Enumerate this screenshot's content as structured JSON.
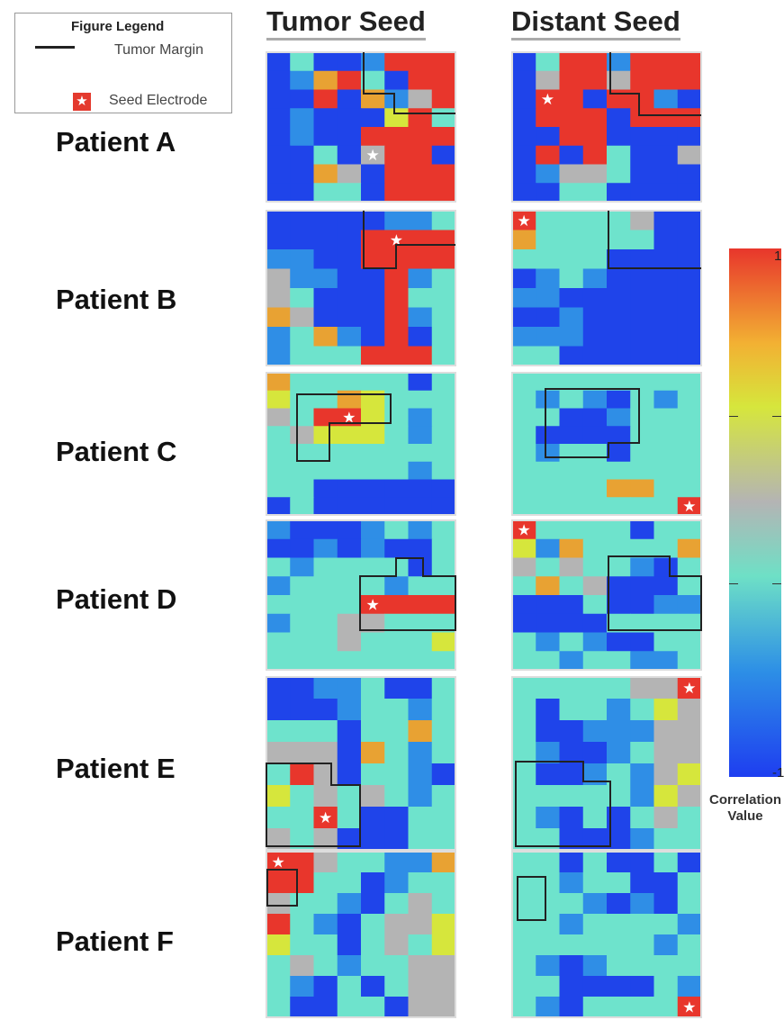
{
  "legend": {
    "title": "Figure Legend",
    "tumor_margin": "Tumor Margin",
    "seed_electrode": "Seed Electrode",
    "star": "★"
  },
  "columns": {
    "tumor": "Tumor Seed",
    "distant": "Distant Seed"
  },
  "patients": [
    "Patient A",
    "Patient B",
    "Patient C",
    "Patient D",
    "Patient E",
    "Patient F"
  ],
  "colorbar": {
    "max_label": "1",
    "min_label": "-1",
    "title_line1": "Correlation",
    "title_line2": "Value",
    "colors": [
      "#e8362c",
      "#f2b133",
      "#d6e63c",
      "#b4b4b4",
      "#6ee0c6",
      "#2d8fe6",
      "#1e3ef0"
    ]
  },
  "colors": {
    "seed": "#e43a2e",
    "background": "#ffffff"
  },
  "panels": [
    {
      "tumor": [
        "0 4 0 0 1 6 6 6",
        "0 1 3 6 4 0 6 6",
        "0 0 6 0 3 1 2 6",
        "0 1 0 0 0 5 6 4",
        "0 1 0 0 6 6 6 6",
        "0 0 4 0 2 6 6 0",
        "0 0 3 2 0 6 6 6",
        "0 0 4 4 0 6 6 6"
      ],
      "tumor_seed": [
        5,
        4
      ],
      "distant": [
        "0 4 6 6 1 6 6 6",
        "0 2 6 6 2 6 6 6",
        "0 6 6 0 6 6 1 0",
        "0 6 6 6 0 6 6 6",
        "0 0 6 6 0 0 0 0",
        "0 6 0 6 4 0 0 2",
        "0 1 2 2 4 0 0 0",
        "0 0 4 4 0 0 0 0"
      ],
      "distant_seed": [
        2,
        1
      ]
    },
    {
      "tumor": [
        "0 0 0 0 0 1 1 4",
        "0 0 0 0 6 6 6 6",
        "1 1 0 0 6 6 6 6",
        "2 1 1 0 0 6 1 4",
        "2 4 0 0 0 6 4 4",
        "3 2 0 0 0 6 1 4",
        "1 4 3 1 0 6 0 4",
        "1 4 4 4 6 6 6 4"
      ],
      "tumor_seed": [
        1,
        5
      ],
      "distant": [
        "6 4 4 4 4 2 0 0",
        "3 4 4 4 4 4 0 0",
        "4 4 4 4 0 0 0 0",
        "0 1 4 1 0 0 0 0",
        "1 1 0 0 0 0 0 0",
        "0 0 1 0 0 0 0 0",
        "1 1 1 0 0 0 0 0",
        "4 4 0 0 0 0 0 0"
      ],
      "distant_seed": [
        0,
        0
      ]
    },
    {
      "tumor": [
        "3 4 4 4 4 4 0 4",
        "5 4 4 3 5 4 4 4",
        "2 4 6 6 5 4 1 4",
        "4 2 5 5 5 4 1 4",
        "4 4 4 4 4 4 4 4",
        "4 4 4 4 4 4 1 4",
        "4 4 0 0 0 0 0 0",
        "0 4 0 0 0 0 0 0"
      ],
      "tumor_seed": [
        2,
        3
      ],
      "distant": [
        "4 4 4 4 4 4 4 4",
        "4 1 4 1 0 4 1 4",
        "4 4 0 0 1 4 4 4",
        "4 0 0 0 0 4 4 4",
        "4 1 4 4 0 4 4 4",
        "4 4 4 4 4 4 4 4",
        "4 4 4 4 3 3 4 4",
        "4 4 4 4 4 4 4 6"
      ],
      "distant_seed": [
        7,
        7
      ]
    },
    {
      "tumor": [
        "1 0 0 0 1 4 1 4",
        "0 0 1 0 1 0 0 4",
        "4 1 4 4 4 4 0 4",
        "1 4 4 4 4 1 4 4",
        "4 4 4 4 6 6 6 6",
        "1 4 4 2 2 4 4 4",
        "4 4 4 2 4 4 4 5",
        "4 4 4 4 4 4 4 4"
      ],
      "tumor_seed": [
        4,
        4
      ],
      "distant": [
        "6 4 4 4 4 0 4 4",
        "5 1 3 4 4 4 4 3",
        "2 4 2 4 4 1 0 4",
        "4 3 4 2 0 0 0 4",
        "0 0 0 4 0 0 1 1",
        "0 0 0 0 4 4 4 4",
        "4 1 4 1 0 0 4 4",
        "4 4 1 4 4 1 1 4"
      ],
      "distant_seed": [
        0,
        0
      ]
    },
    {
      "tumor": [
        "0 0 1 1 4 0 0 4",
        "0 0 0 1 4 4 1 4",
        "4 4 4 0 4 4 3 4",
        "2 2 2 0 3 4 1 4",
        "4 6 2 0 4 4 1 0",
        "5 4 2 4 2 4 1 4",
        "4 4 6 4 0 0 4 4",
        "2 4 2 0 0 0 4 4"
      ],
      "tumor_seed": [
        6,
        2
      ],
      "distant": [
        "4 4 4 4 4 2 2 6",
        "4 0 4 4 1 4 5 2",
        "4 0 0 1 1 1 2 2",
        "4 1 0 0 1 4 2 2",
        "4 0 0 1 4 1 2 5",
        "4 4 4 4 4 1 5 2",
        "4 1 0 4 0 4 2 4",
        "4 4 0 0 0 1 4 4"
      ],
      "distant_seed": [
        0,
        7
      ]
    },
    {
      "tumor": [
        "6 6 2 4 4 1 1 3",
        "6 6 4 4 0 1 4 4",
        "2 4 4 1 0 4 2 4",
        "6 4 1 0 4 2 2 5",
        "5 4 4 0 4 2 4 5",
        "4 2 4 1 4 4 2 2",
        "4 1 0 4 0 4 2 2",
        "4 0 0 4 4 0 2 2"
      ],
      "tumor_seed": [
        0,
        0
      ],
      "distant": [
        "4 4 0 4 0 0 4 0",
        "4 4 1 4 4 0 0 4",
        "4 4 4 1 0 1 0 4",
        "4 4 1 4 4 4 4 1",
        "4 4 4 4 4 4 1 4",
        "4 1 0 1 4 4 4 4",
        "4 4 0 0 0 0 4 1",
        "4 1 0 4 4 4 4 6"
      ],
      "distant_seed": [
        7,
        7
      ]
    }
  ]
}
